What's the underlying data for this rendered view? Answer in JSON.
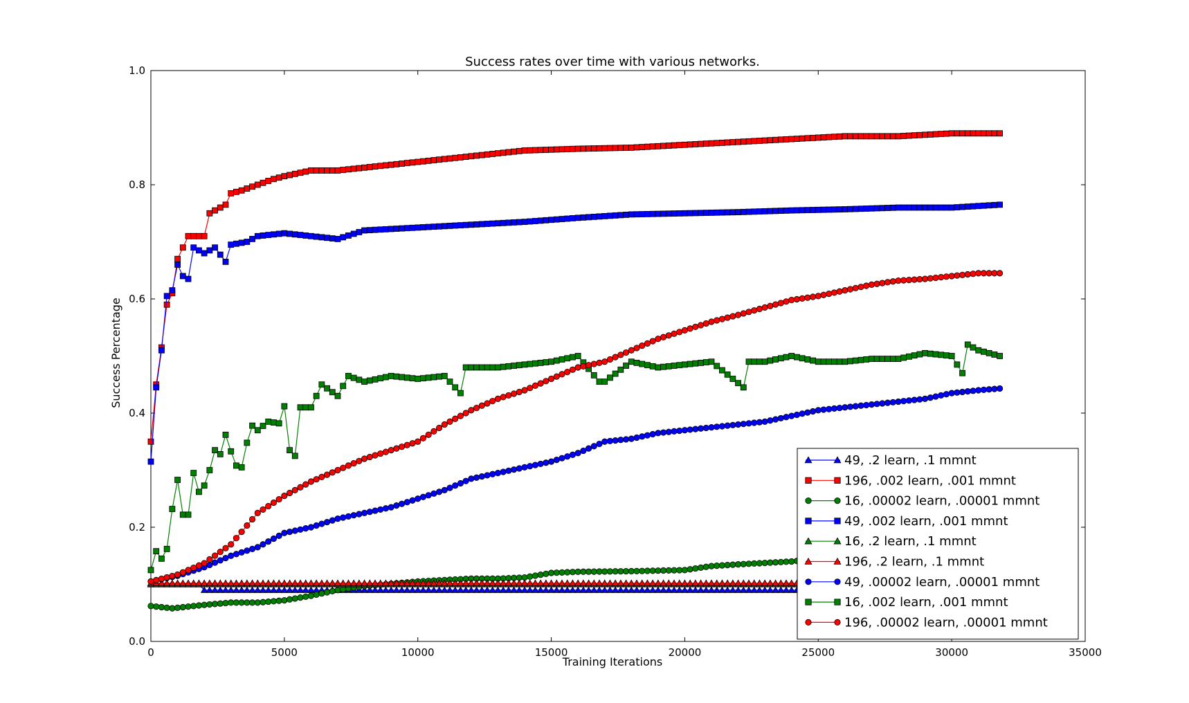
{
  "chart_data": {
    "type": "line",
    "title": "Success rates over time with various networks.",
    "xlabel": "Training Iterations",
    "ylabel": "Success Percentage",
    "xlim": [
      0,
      35000
    ],
    "ylim": [
      0.0,
      1.0
    ],
    "xticks": [
      0,
      5000,
      10000,
      15000,
      20000,
      25000,
      30000,
      35000
    ],
    "xtick_labels": [
      "0",
      "5000",
      "10000",
      "15000",
      "20000",
      "25000",
      "30000",
      "35000"
    ],
    "yticks": [
      0.0,
      0.2,
      0.4,
      0.6,
      0.8,
      1.0
    ],
    "ytick_labels": [
      "0.0",
      "0.2",
      "0.4",
      "0.6",
      "0.8",
      "1.0"
    ],
    "grid": false,
    "legend_position": "lower-right",
    "series": [
      {
        "name": "49, .2 learn, .1 mmnt",
        "color": "#0000ff",
        "marker": "triangle",
        "x_start": 0,
        "x_step": 200,
        "x_end": 31800,
        "y_points": [
          [
            0,
            0.1
          ],
          [
            1800,
            0.1
          ],
          [
            2000,
            0.09
          ],
          [
            31800,
            0.09
          ]
        ]
      },
      {
        "name": "196, .002 learn, .001 mmnt",
        "color": "#ff0000",
        "marker": "square",
        "x_start": 0,
        "x_step": 200,
        "x_end": 31800,
        "y_points": [
          [
            0,
            0.35
          ],
          [
            200,
            0.45
          ],
          [
            400,
            0.515
          ],
          [
            600,
            0.59
          ],
          [
            800,
            0.61
          ],
          [
            1000,
            0.67
          ],
          [
            1200,
            0.69
          ],
          [
            1400,
            0.71
          ],
          [
            2000,
            0.71
          ],
          [
            2200,
            0.75
          ],
          [
            2800,
            0.765
          ],
          [
            3000,
            0.785
          ],
          [
            3400,
            0.79
          ],
          [
            4000,
            0.8
          ],
          [
            4600,
            0.81
          ],
          [
            5000,
            0.815
          ],
          [
            6000,
            0.825
          ],
          [
            7000,
            0.825
          ],
          [
            8000,
            0.83
          ],
          [
            9000,
            0.835
          ],
          [
            10000,
            0.84
          ],
          [
            12000,
            0.85
          ],
          [
            14000,
            0.86
          ],
          [
            16000,
            0.863
          ],
          [
            18000,
            0.865
          ],
          [
            20000,
            0.87
          ],
          [
            22000,
            0.875
          ],
          [
            24000,
            0.88
          ],
          [
            26000,
            0.885
          ],
          [
            28000,
            0.885
          ],
          [
            30000,
            0.89
          ],
          [
            31800,
            0.89
          ]
        ]
      },
      {
        "name": "16, .00002 learn, .00001 mmnt",
        "color": "#008000",
        "marker": "circle",
        "x_start": 0,
        "x_step": 200,
        "x_end": 31800,
        "y_points": [
          [
            0,
            0.062
          ],
          [
            800,
            0.058
          ],
          [
            2000,
            0.064
          ],
          [
            3000,
            0.068
          ],
          [
            4000,
            0.068
          ],
          [
            5000,
            0.072
          ],
          [
            6000,
            0.08
          ],
          [
            7000,
            0.09
          ],
          [
            8000,
            0.097
          ],
          [
            10000,
            0.105
          ],
          [
            12000,
            0.11
          ],
          [
            13000,
            0.11
          ],
          [
            14000,
            0.112
          ],
          [
            15000,
            0.12
          ],
          [
            16000,
            0.122
          ],
          [
            18000,
            0.123
          ],
          [
            20000,
            0.125
          ],
          [
            21000,
            0.132
          ],
          [
            22000,
            0.135
          ],
          [
            24000,
            0.14
          ],
          [
            26000,
            0.15
          ],
          [
            28000,
            0.16
          ],
          [
            30000,
            0.17
          ],
          [
            31800,
            0.175
          ]
        ]
      },
      {
        "name": "49, .002 learn, .001 mmnt",
        "color": "#0000ff",
        "marker": "square",
        "x_start": 0,
        "x_step": 200,
        "x_end": 31800,
        "y_points": [
          [
            0,
            0.315
          ],
          [
            200,
            0.445
          ],
          [
            400,
            0.51
          ],
          [
            600,
            0.605
          ],
          [
            800,
            0.615
          ],
          [
            1000,
            0.66
          ],
          [
            1200,
            0.64
          ],
          [
            1400,
            0.635
          ],
          [
            1600,
            0.69
          ],
          [
            2000,
            0.68
          ],
          [
            2400,
            0.69
          ],
          [
            2800,
            0.665
          ],
          [
            3000,
            0.695
          ],
          [
            3600,
            0.7
          ],
          [
            4000,
            0.71
          ],
          [
            5000,
            0.715
          ],
          [
            6000,
            0.71
          ],
          [
            7000,
            0.705
          ],
          [
            8000,
            0.72
          ],
          [
            10000,
            0.725
          ],
          [
            12000,
            0.73
          ],
          [
            14000,
            0.735
          ],
          [
            16000,
            0.742
          ],
          [
            18000,
            0.748
          ],
          [
            20000,
            0.75
          ],
          [
            22000,
            0.752
          ],
          [
            24000,
            0.755
          ],
          [
            26000,
            0.757
          ],
          [
            28000,
            0.76
          ],
          [
            30000,
            0.76
          ],
          [
            31800,
            0.765
          ]
        ]
      },
      {
        "name": "16, .2 learn, .1 mmnt",
        "color": "#008000",
        "marker": "triangle",
        "x_start": 0,
        "x_step": 200,
        "x_end": 31800,
        "y_points": [
          [
            0,
            0.1
          ],
          [
            31800,
            0.1
          ]
        ]
      },
      {
        "name": "196, .2 learn, .1 mmnt",
        "color": "#ff0000",
        "marker": "triangle",
        "x_start": 0,
        "x_step": 200,
        "x_end": 31800,
        "y_points": [
          [
            0,
            0.102
          ],
          [
            31800,
            0.102
          ]
        ]
      },
      {
        "name": "49, .00002 learn, .00001 mmnt",
        "color": "#0000ff",
        "marker": "circle",
        "x_start": 0,
        "x_step": 200,
        "x_end": 31800,
        "y_points": [
          [
            0,
            0.105
          ],
          [
            1000,
            0.115
          ],
          [
            2000,
            0.13
          ],
          [
            3000,
            0.15
          ],
          [
            4000,
            0.165
          ],
          [
            5000,
            0.19
          ],
          [
            6000,
            0.2
          ],
          [
            7000,
            0.215
          ],
          [
            8000,
            0.225
          ],
          [
            9000,
            0.235
          ],
          [
            10000,
            0.25
          ],
          [
            11000,
            0.265
          ],
          [
            12000,
            0.285
          ],
          [
            13000,
            0.295
          ],
          [
            14000,
            0.305
          ],
          [
            15000,
            0.315
          ],
          [
            16000,
            0.33
          ],
          [
            17000,
            0.35
          ],
          [
            18000,
            0.355
          ],
          [
            19000,
            0.365
          ],
          [
            20000,
            0.37
          ],
          [
            21000,
            0.375
          ],
          [
            22000,
            0.38
          ],
          [
            23000,
            0.385
          ],
          [
            24000,
            0.395
          ],
          [
            25000,
            0.405
          ],
          [
            26000,
            0.41
          ],
          [
            27000,
            0.415
          ],
          [
            28000,
            0.42
          ],
          [
            29000,
            0.425
          ],
          [
            30000,
            0.435
          ],
          [
            31000,
            0.44
          ],
          [
            31800,
            0.443
          ]
        ]
      },
      {
        "name": "16, .002 learn, .001 mmnt",
        "color": "#008000",
        "marker": "square",
        "x_start": 0,
        "x_step": 200,
        "x_end": 31800,
        "y_points": [
          [
            0,
            0.125
          ],
          [
            200,
            0.158
          ],
          [
            400,
            0.145
          ],
          [
            600,
            0.162
          ],
          [
            800,
            0.232
          ],
          [
            1000,
            0.283
          ],
          [
            1200,
            0.222
          ],
          [
            1400,
            0.222
          ],
          [
            1600,
            0.295
          ],
          [
            1800,
            0.262
          ],
          [
            2000,
            0.273
          ],
          [
            2200,
            0.3
          ],
          [
            2400,
            0.335
          ],
          [
            2600,
            0.328
          ],
          [
            2800,
            0.362
          ],
          [
            3000,
            0.333
          ],
          [
            3200,
            0.308
          ],
          [
            3400,
            0.305
          ],
          [
            3600,
            0.348
          ],
          [
            3800,
            0.378
          ],
          [
            4000,
            0.37
          ],
          [
            4400,
            0.385
          ],
          [
            4800,
            0.382
          ],
          [
            5000,
            0.412
          ],
          [
            5200,
            0.335
          ],
          [
            5400,
            0.325
          ],
          [
            5600,
            0.41
          ],
          [
            6000,
            0.41
          ],
          [
            6400,
            0.45
          ],
          [
            7000,
            0.43
          ],
          [
            7400,
            0.465
          ],
          [
            8000,
            0.455
          ],
          [
            9000,
            0.465
          ],
          [
            10000,
            0.46
          ],
          [
            11000,
            0.465
          ],
          [
            11600,
            0.435
          ],
          [
            11800,
            0.48
          ],
          [
            12000,
            0.48
          ],
          [
            13000,
            0.48
          ],
          [
            14000,
            0.485
          ],
          [
            15000,
            0.49
          ],
          [
            16000,
            0.5
          ],
          [
            16800,
            0.455
          ],
          [
            17000,
            0.455
          ],
          [
            18000,
            0.49
          ],
          [
            19000,
            0.48
          ],
          [
            20000,
            0.485
          ],
          [
            21000,
            0.49
          ],
          [
            22200,
            0.445
          ],
          [
            22400,
            0.49
          ],
          [
            23000,
            0.49
          ],
          [
            24000,
            0.5
          ],
          [
            25000,
            0.49
          ],
          [
            26000,
            0.49
          ],
          [
            27000,
            0.495
          ],
          [
            28000,
            0.495
          ],
          [
            29000,
            0.505
          ],
          [
            30000,
            0.5
          ],
          [
            30400,
            0.47
          ],
          [
            30600,
            0.52
          ],
          [
            31000,
            0.51
          ],
          [
            31800,
            0.5
          ]
        ]
      },
      {
        "name": "196, .00002 learn, .00001 mmnt",
        "color": "#ff0000",
        "marker": "circle",
        "x_start": 0,
        "x_step": 200,
        "x_end": 31800,
        "y_points": [
          [
            0,
            0.105
          ],
          [
            1000,
            0.117
          ],
          [
            2000,
            0.137
          ],
          [
            3000,
            0.17
          ],
          [
            4000,
            0.225
          ],
          [
            5000,
            0.255
          ],
          [
            6000,
            0.28
          ],
          [
            7000,
            0.3
          ],
          [
            8000,
            0.32
          ],
          [
            9000,
            0.335
          ],
          [
            10000,
            0.35
          ],
          [
            11000,
            0.38
          ],
          [
            12000,
            0.405
          ],
          [
            13000,
            0.425
          ],
          [
            14000,
            0.44
          ],
          [
            15000,
            0.46
          ],
          [
            16000,
            0.48
          ],
          [
            17000,
            0.49
          ],
          [
            18000,
            0.51
          ],
          [
            19000,
            0.53
          ],
          [
            20000,
            0.545
          ],
          [
            21000,
            0.56
          ],
          [
            22000,
            0.572
          ],
          [
            23000,
            0.585
          ],
          [
            24000,
            0.598
          ],
          [
            25000,
            0.605
          ],
          [
            26000,
            0.615
          ],
          [
            27000,
            0.625
          ],
          [
            28000,
            0.632
          ],
          [
            29000,
            0.635
          ],
          [
            30000,
            0.64
          ],
          [
            31000,
            0.645
          ],
          [
            31800,
            0.645
          ]
        ]
      }
    ]
  }
}
